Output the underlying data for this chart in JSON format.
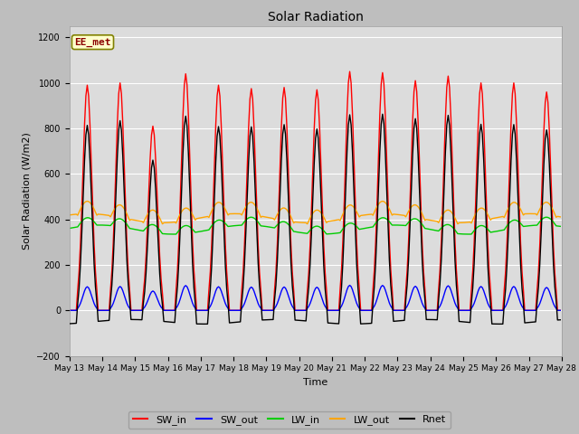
{
  "title": "Solar Radiation",
  "xlabel": "Time",
  "ylabel": "Solar Radiation (W/m2)",
  "ylim": [
    -200,
    1250
  ],
  "annotation_text": "EE_met",
  "figure_bg": "#bebebe",
  "plot_bg": "#dcdcdc",
  "grid_color": "#ffffff",
  "series": {
    "SW_in": {
      "color": "#ff0000",
      "lw": 1.0
    },
    "SW_out": {
      "color": "#0000ff",
      "lw": 1.0
    },
    "LW_in": {
      "color": "#00cc00",
      "lw": 1.0
    },
    "LW_out": {
      "color": "#ffa500",
      "lw": 1.0
    },
    "Rnet": {
      "color": "#000000",
      "lw": 1.0
    }
  },
  "yticks": [
    -200,
    0,
    200,
    400,
    600,
    800,
    1000,
    1200
  ],
  "tick_labels": [
    "May 13",
    "May 14",
    "May 15",
    "May 16",
    "May 17",
    "May 18",
    "May 19",
    "May 20",
    "May 21",
    "May 22",
    "May 23",
    "May 24",
    "May 25",
    "May 26",
    "May 27",
    "May 28"
  ],
  "peak_heights": [
    990,
    1000,
    810,
    1040,
    990,
    975,
    980,
    970,
    1050,
    1045,
    1010,
    1030,
    1000,
    1000,
    960
  ],
  "lw_in_base": 355,
  "lw_out_base": 400,
  "n_days": 15
}
